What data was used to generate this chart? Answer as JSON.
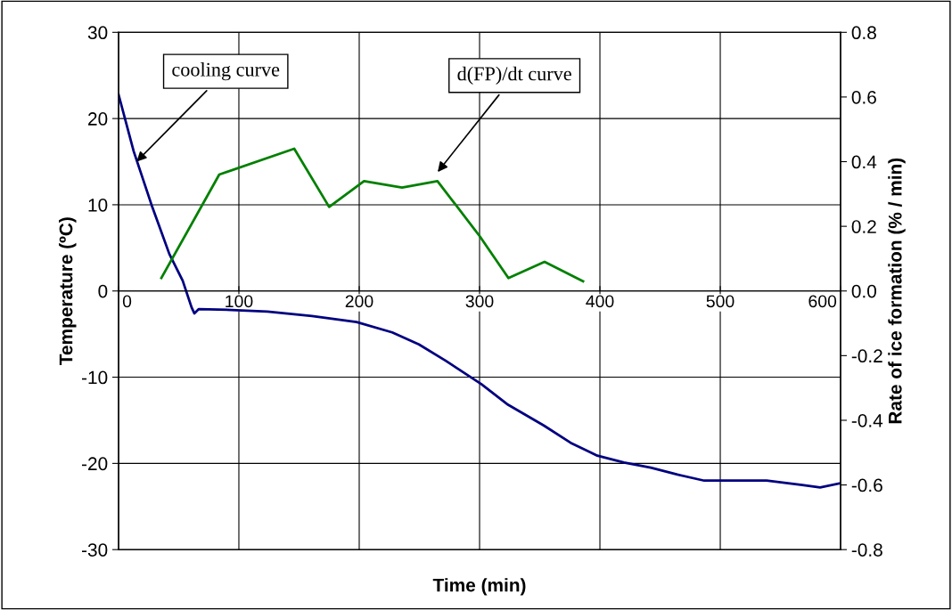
{
  "chart_data": {
    "type": "line",
    "xlabel": "Time (min)",
    "ylabel": "Temperature (ºC)",
    "y2label": "Rate of ice formation (% / min)",
    "xlim": [
      0,
      600
    ],
    "xticks": [
      0,
      100,
      200,
      300,
      400,
      500,
      600
    ],
    "ylim": [
      -30,
      30
    ],
    "yticks": [
      -30,
      -20,
      -10,
      0,
      10,
      20,
      30
    ],
    "y2lim": [
      -0.8,
      0.8
    ],
    "y2ticks": [
      -0.8,
      -0.6,
      -0.4,
      -0.2,
      {
        "value": 0,
        "label": "0.0"
      },
      0.2,
      0.4,
      0.6,
      0.8
    ],
    "grid": true,
    "legend": false,
    "marker": "none",
    "line_style": "solid",
    "series": [
      {
        "color": "#000080",
        "x": [
          0,
          12.6,
          27.4,
          42.2,
          53.3,
          60.7,
          63,
          66.7,
          94,
          123.7,
          160.7,
          197.8,
          227.4,
          249.6,
          271.9,
          301.5,
          323.7,
          353.3,
          375.6,
          397.8,
          420,
          442.2,
          464.4,
          486.7,
          508.9,
          538.5,
          568.1,
          583,
          600
        ],
        "values": [
          22.8,
          16.2,
          10,
          4.3,
          1.2,
          -1.9,
          -2.6,
          -2.1,
          -2.2,
          -2.4,
          -2.9,
          -3.6,
          -4.8,
          -6.2,
          -8.1,
          -10.8,
          -13.2,
          -15.6,
          -17.6,
          -19.1,
          -19.9,
          -20.5,
          -21.3,
          -22.0,
          -22.0,
          -22.0,
          -22.5,
          -22.8,
          -22.3
        ]
      },
      {
        "color": "#008000",
        "axis": "y2",
        "x": [
          35.6,
          83.7,
          146,
          175,
          204,
          235.6,
          265,
          300,
          324,
          354,
          386
        ],
        "values": [
          0.04,
          0.36,
          0.44,
          0.26,
          0.34,
          0.32,
          0.34,
          0.17,
          0.04,
          0.09,
          0.03
        ]
      }
    ],
    "annotations": [
      {
        "text": "cooling curve",
        "x": 15,
        "y": 15
      },
      "d(FP)/dt curve"
    ]
  }
}
